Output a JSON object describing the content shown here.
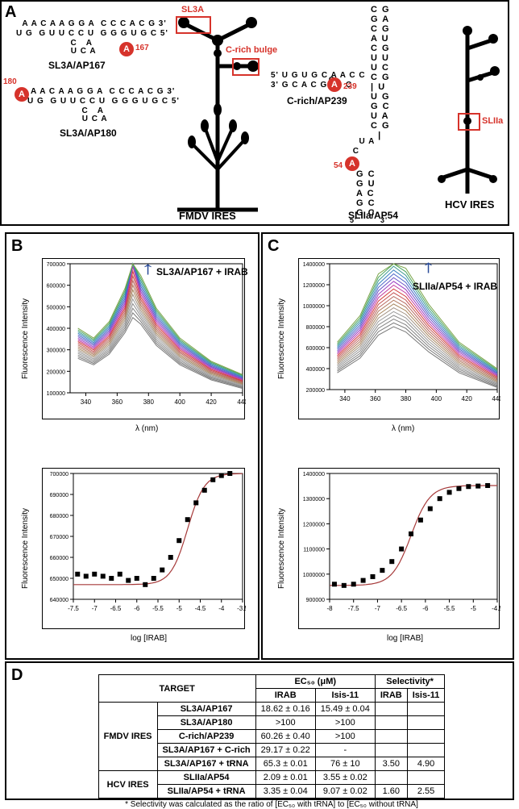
{
  "labels": {
    "A": "A",
    "B": "B",
    "C": "C",
    "D": "D",
    "SL3A": "SL3A",
    "Crich": "C-rich bulge",
    "SLIIa": "SLIIa",
    "SL3A_AP167": "SL3A/AP167",
    "SL3A_AP180": "SL3A/AP180",
    "Crich_AP239": "C-rich/AP239",
    "SLIIa_AP54": "SLIIa/AP54",
    "FMDV": "FMDV IRES",
    "HCV": "HCV IRES",
    "arrowB": "SL3A/AP167 + IRAB",
    "arrowC": "SLIIa/AP54 + IRAB",
    "xlabelB": "λ (nm)",
    "xlabelC": "λ (nm)",
    "xlabelB2": "log [IRAB]",
    "xlabelC2": "log [IRAB]",
    "ylabel": "Fluorescence Intensity",
    "ap167": "167",
    "ap180": "180",
    "ap239": "239",
    "ap54": "54",
    "note": "* Selectivity was calculated as the ratio of [EC₅₀ with tRNA] to [EC₅₀ without tRNA]"
  },
  "seqs": {
    "sl3a_top": " A A C A A G G A  C C C A C G 3'",
    "sl3a_bot": "U G  G U U C C U  G G G U G C 5'",
    "sl3a_stub1": "           C   A",
    "sl3a_stub2": "          U C A",
    "sl3a2_top": "A A C A A G G A  C C C A C G 3'",
    "sl3a2_bot": "U G  G U U C C U  G G G U G C 5'",
    "sl3a2_stub1": "           C   A",
    "sl3a2_stub2": "          U C A",
    "crich_top": "5' U G U G C A A C C",
    "crich_bot": "3' G C A C G      C",
    "crich_right": "                   C",
    "hcvL1": "C  G",
    "hcvL2": "G  A",
    "hcvL3": "C  G",
    "hcvL4": "A  U",
    "hcvL5": "C  G",
    "hcvL6": "U  U",
    "hcvL7": "U  C",
    "hcvL8": "C  G",
    "hcvL9dash": "|  U",
    "hcvL10": "U  G",
    "hcvL11": "G  C",
    "hcvL12": "U  A",
    "hcvL13": "C  G",
    "hcvL14": "   |",
    "hcvLuA": "  U A",
    "hcvL15": " C",
    "hcv_loop1": "A",
    "hcv_bot": "G  C",
    "hcv_stem1": "G  U",
    "hcv_stem2": "A  C",
    "hcv_stem3": "G  C",
    "hcv_stem4": "G  C",
    "hcv_5": "5'",
    "hcv_3": "3'"
  },
  "table": {
    "headers": {
      "target": "TARGET",
      "ec50": "EC₅₀ (μM)",
      "sel": "Selectivity*",
      "IRAB": "IRAB",
      "Isis": "Isis-11"
    },
    "groups": [
      {
        "name": "FMDV IRES",
        "rows": [
          {
            "t": "SL3A/AP167",
            "i": "18.62 ± 0.16",
            "s": "15.49 ± 0.04",
            "si": "",
            "ss": ""
          },
          {
            "t": "SL3A/AP180",
            "i": ">100",
            "s": ">100",
            "si": "",
            "ss": ""
          },
          {
            "t": "C-rich/AP239",
            "i": "60.26 ± 0.40",
            "s": ">100",
            "si": "",
            "ss": ""
          },
          {
            "t": "SL3A/AP167 + C-rich",
            "i": "29.17 ± 0.22",
            "s": "-",
            "si": "",
            "ss": ""
          },
          {
            "t": "SL3A/AP167 + tRNA",
            "i": "65.3 ± 0.01",
            "s": "76 ± 10",
            "si": "3.50",
            "ss": "4.90"
          }
        ]
      },
      {
        "name": "HCV IRES",
        "rows": [
          {
            "t": "SLIIa/AP54",
            "i": "2.09 ± 0.01",
            "s": "3.55 ± 0.02",
            "si": "",
            "ss": ""
          },
          {
            "t": "SLIIa/AP54 + tRNA",
            "i": "3.35 ± 0.04",
            "s": "9.07 ± 0.02",
            "si": "1.60",
            "ss": "2.55"
          }
        ]
      }
    ]
  },
  "chartB_top": {
    "xmin": 330,
    "xmax": 440,
    "xticks": [
      340,
      360,
      380,
      400,
      420,
      440
    ],
    "ymin": 100000,
    "ymax": 700000,
    "yticks": [
      100000,
      200000,
      300000,
      400000,
      500000,
      600000,
      700000
    ],
    "colors": [
      "#7a7a7a",
      "#777",
      "#828282",
      "#8e8e8e",
      "#9b9b9b",
      "#a29282",
      "#a88860",
      "#b07a60",
      "#b86a60",
      "#c55454",
      "#d13c3c",
      "#c23ca0",
      "#9a3cc2",
      "#6a54c8",
      "#4864c8",
      "#3a82c0",
      "#3a9a90",
      "#4aa45a",
      "#7aa44a"
    ]
  },
  "chartC_top": {
    "xmin": 330,
    "xmax": 440,
    "xticks": [
      340,
      360,
      380,
      400,
      420,
      440
    ],
    "ymin": 200000,
    "ymax": 1400000,
    "yticks": [
      200000,
      400000,
      600000,
      800000,
      1000000,
      1200000,
      1400000
    ]
  },
  "chartB_bot": {
    "xmin": -7.5,
    "xmax": -3.5,
    "xticks": [
      -7.5,
      -7.0,
      -6.5,
      -6.0,
      -5.5,
      -5.0,
      -4.5,
      -4.0,
      -3.5
    ],
    "ymin": 640000,
    "ymax": 700000,
    "yticks": [
      640000,
      650000,
      660000,
      670000,
      680000,
      690000,
      700000
    ],
    "points": [
      [
        -7.4,
        652000
      ],
      [
        -7.2,
        651000
      ],
      [
        -7.0,
        652000
      ],
      [
        -6.8,
        651000
      ],
      [
        -6.6,
        650000
      ],
      [
        -6.4,
        652000
      ],
      [
        -6.2,
        649000
      ],
      [
        -6.0,
        650000
      ],
      [
        -5.8,
        647000
      ],
      [
        -5.6,
        650000
      ],
      [
        -5.4,
        654000
      ],
      [
        -5.2,
        660000
      ],
      [
        -5.0,
        668000
      ],
      [
        -4.8,
        678000
      ],
      [
        -4.6,
        686000
      ],
      [
        -4.4,
        692000
      ],
      [
        -4.2,
        697000
      ],
      [
        -4.0,
        699000
      ],
      [
        -3.8,
        700000
      ]
    ],
    "fit_color": "#a63a3a",
    "point_color": "#000"
  },
  "chartC_bot": {
    "xmin": -8.0,
    "xmax": -4.5,
    "xticks": [
      -8.0,
      -7.5,
      -7.0,
      -6.5,
      -6.0,
      -5.5,
      -5.0,
      -4.5
    ],
    "ymin": 900000,
    "ymax": 1400000,
    "yticks": [
      900000,
      1000000,
      1100000,
      1200000,
      1300000,
      1400000
    ],
    "points": [
      [
        -7.9,
        960000
      ],
      [
        -7.7,
        955000
      ],
      [
        -7.5,
        960000
      ],
      [
        -7.3,
        975000
      ],
      [
        -7.1,
        990000
      ],
      [
        -6.9,
        1015000
      ],
      [
        -6.7,
        1050000
      ],
      [
        -6.5,
        1100000
      ],
      [
        -6.3,
        1160000
      ],
      [
        -6.1,
        1215000
      ],
      [
        -5.9,
        1260000
      ],
      [
        -5.7,
        1300000
      ],
      [
        -5.5,
        1325000
      ],
      [
        -5.3,
        1340000
      ],
      [
        -5.1,
        1348000
      ],
      [
        -4.9,
        1350000
      ],
      [
        -4.7,
        1352000
      ]
    ],
    "fit_color": "#a63a3a",
    "point_color": "#000"
  },
  "style": {
    "red": "#d6332b",
    "blue": "#284a98"
  }
}
